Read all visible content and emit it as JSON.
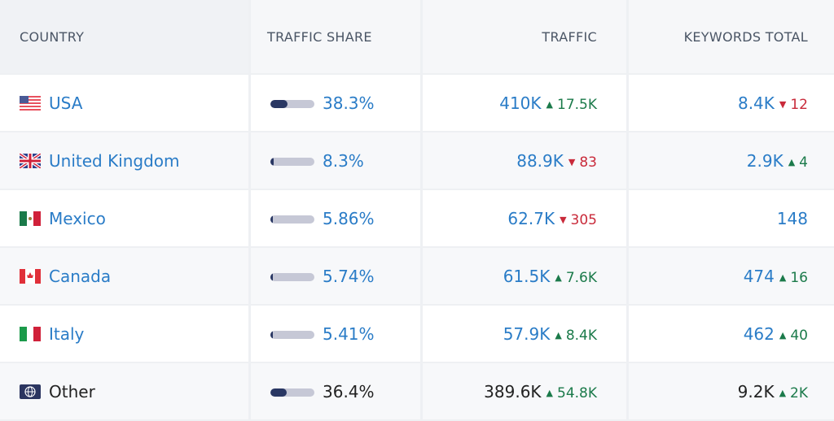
{
  "headers": {
    "country": "Country",
    "share": "Traffic Share",
    "traffic": "Traffic",
    "keywords": "Keywords Total"
  },
  "colors": {
    "link": "#2a7cc7",
    "up": "#1b7a4a",
    "down": "#c92a3a",
    "bar_fill": "#293763",
    "bar_track": "#c6c8d6"
  },
  "rows": [
    {
      "country": "USA",
      "flag": "us-flag-icon",
      "share": "38.3%",
      "share_value": 38.3,
      "traffic": "410K",
      "traffic_delta": "17.5K",
      "traffic_dir": "up",
      "keywords": "8.4K",
      "kw_delta": "12",
      "kw_dir": "down"
    },
    {
      "country": "United Kingdom",
      "flag": "uk-flag-icon",
      "share": "8.3%",
      "share_value": 8.3,
      "traffic": "88.9K",
      "traffic_delta": "83",
      "traffic_dir": "down",
      "keywords": "2.9K",
      "kw_delta": "4",
      "kw_dir": "up"
    },
    {
      "country": "Mexico",
      "flag": "mexico-flag-icon",
      "share": "5.86%",
      "share_value": 5.86,
      "traffic": "62.7K",
      "traffic_delta": "305",
      "traffic_dir": "down",
      "keywords": "148",
      "kw_delta": "",
      "kw_dir": ""
    },
    {
      "country": "Canada",
      "flag": "canada-flag-icon",
      "share": "5.74%",
      "share_value": 5.74,
      "traffic": "61.5K",
      "traffic_delta": "7.6K",
      "traffic_dir": "up",
      "keywords": "474",
      "kw_delta": "16",
      "kw_dir": "up"
    },
    {
      "country": "Italy",
      "flag": "italy-flag-icon",
      "share": "5.41%",
      "share_value": 5.41,
      "traffic": "57.9K",
      "traffic_delta": "8.4K",
      "traffic_dir": "up",
      "keywords": "462",
      "kw_delta": "40",
      "kw_dir": "up"
    },
    {
      "country": "Other",
      "flag": "globe-icon",
      "share": "36.4%",
      "share_value": 36.4,
      "traffic": "389.6K",
      "traffic_delta": "54.8K",
      "traffic_dir": "up",
      "keywords": "9.2K",
      "kw_delta": "2K",
      "kw_dir": "up"
    }
  ]
}
